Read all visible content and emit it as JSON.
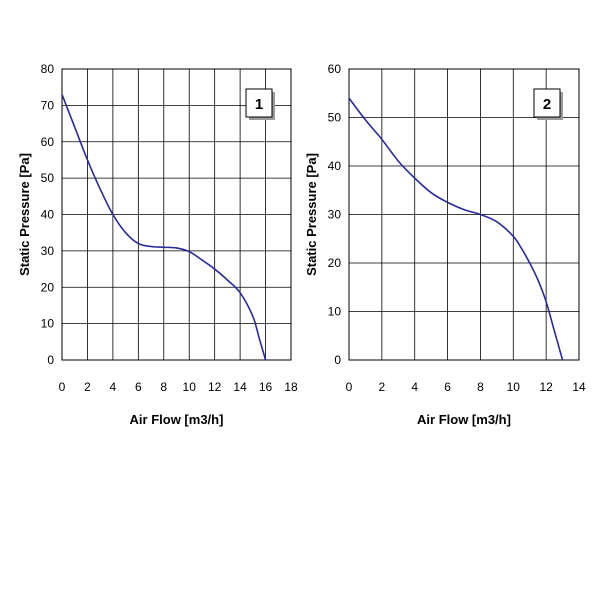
{
  "chart_data": [
    {
      "type": "line",
      "label": "1",
      "xlabel": "Air Flow [m3/h]",
      "ylabel": "Static Pressure [Pa]",
      "xlim": [
        0,
        18
      ],
      "ylim": [
        0,
        80
      ],
      "xticks": [
        0,
        2,
        4,
        6,
        8,
        10,
        12,
        14,
        16,
        18
      ],
      "yticks": [
        0,
        10,
        20,
        30,
        40,
        50,
        60,
        70,
        80
      ],
      "grid": true,
      "color": "#2a2a9e",
      "x": [
        0,
        1,
        2,
        3,
        4,
        5,
        6,
        7,
        8,
        9,
        10,
        11,
        12,
        13,
        14,
        15,
        15.5,
        16
      ],
      "y": [
        73,
        64,
        55,
        47,
        40,
        35,
        32,
        31.2,
        31,
        30.8,
        29.8,
        27.5,
        25,
        22,
        18.5,
        12,
        6,
        0
      ]
    },
    {
      "type": "line",
      "label": "2",
      "xlabel": "Air Flow [m3/h]",
      "ylabel": "Static Pressure [Pa]",
      "xlim": [
        0,
        14
      ],
      "ylim": [
        0,
        60
      ],
      "xticks": [
        0,
        2,
        4,
        6,
        8,
        10,
        12,
        14
      ],
      "yticks": [
        0,
        10,
        20,
        30,
        40,
        50,
        60
      ],
      "grid": true,
      "color": "#2a2a9e",
      "x": [
        0,
        1,
        2,
        3,
        4,
        5,
        6,
        7,
        8,
        9,
        10,
        10.5,
        11,
        11.5,
        12,
        12.5,
        13
      ],
      "y": [
        54,
        49.5,
        45.5,
        41,
        37.5,
        34.5,
        32.5,
        31,
        30,
        28.5,
        25.5,
        23,
        20,
        16.5,
        12,
        6,
        0
      ]
    }
  ]
}
